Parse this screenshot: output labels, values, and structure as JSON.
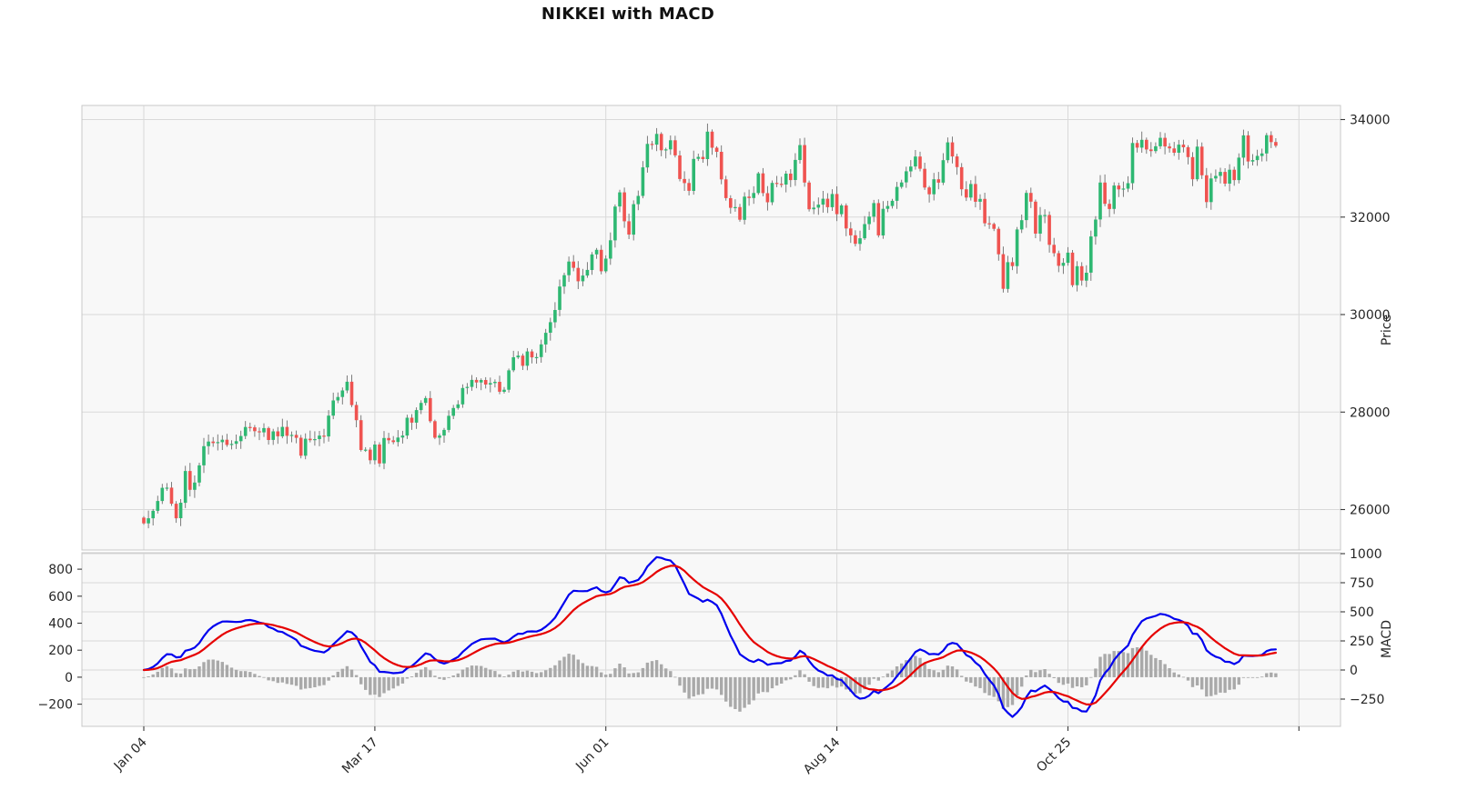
{
  "title": "NIKKEI with MACD",
  "axes": {
    "price": {
      "label": "Price",
      "tick_values": [
        34000,
        32000,
        30000,
        28000,
        26000
      ],
      "tick_labels": [
        "34000",
        "32000",
        "30000",
        "28000",
        "26000"
      ]
    },
    "macd": {
      "label": "MACD",
      "left_tick_values": [
        800,
        600,
        400,
        200,
        0,
        -200
      ],
      "left_tick_labels": [
        "800",
        "600",
        "400",
        "200",
        "0",
        "−200"
      ],
      "right_tick_values": [
        1000,
        750,
        500,
        250,
        0,
        -250
      ],
      "right_tick_labels": [
        "1000",
        "750",
        "500",
        "250",
        "0",
        "−250"
      ]
    },
    "x": {
      "tick_indices": [
        0,
        50,
        100,
        150,
        200,
        250
      ],
      "tick_labels": [
        "Jan 04",
        "Mar 17",
        "Jun 01",
        "Aug 14",
        "Oct 25",
        ""
      ]
    }
  },
  "chart_data": {
    "type": "candlestick_with_macd",
    "title": "NIKKEI with MACD",
    "panels": [
      {
        "name": "price",
        "type": "candle",
        "ylabel": "Price",
        "ylim": [
          25170,
          34290
        ],
        "yticks": [
          26000,
          28000,
          30000,
          32000,
          34000
        ],
        "grid": true
      },
      {
        "name": "macd",
        "type": "macd",
        "ylabel": "MACD",
        "left_ylim": [
          -364,
          922
        ],
        "left_yticks": [
          -200,
          0,
          200,
          400,
          600,
          800
        ],
        "right_ylim": [
          -484,
          1008
        ],
        "right_yticks": [
          -250,
          0,
          250,
          500,
          750,
          1000
        ],
        "grid": true
      }
    ],
    "x_tick_labels": [
      "Jan 04",
      "Mar 17",
      "Jun 01",
      "Aug 14",
      "Oct 25"
    ],
    "x_tick_indices": [
      0,
      50,
      100,
      150,
      200,
      250
    ],
    "macd_params": {
      "fast": 12,
      "slow": 26,
      "signal": 9
    },
    "first_open": 25834,
    "close": [
      25717,
      25821,
      25974,
      26176,
      26446,
      26450,
      26120,
      25822,
      26139,
      26791,
      26405,
      26554,
      26906,
      27299,
      27395,
      27363,
      27383,
      27433,
      27327,
      27347,
      27402,
      27509,
      27694,
      27685,
      27606,
      27584,
      27671,
      27427,
      27603,
      27502,
      27696,
      27513,
      27532,
      27473,
      27104,
      27453,
      27424,
      27446,
      27517,
      27499,
      27927,
      28238,
      28309,
      28444,
      28623,
      28144,
      27833,
      27222,
      27229,
      27011,
      27334,
      26946,
      27467,
      27420,
      27385,
      27477,
      27518,
      27884,
      27783,
      28041,
      28188,
      28287,
      27813,
      27473,
      27518,
      27634,
      27923,
      28083,
      28157,
      28493,
      28515,
      28659,
      28607,
      28658,
      28564,
      28594,
      28620,
      28416,
      28458,
      28856,
      29123,
      29158,
      28950,
      29243,
      29122,
      29127,
      29388,
      29626,
      29843,
      30094,
      30574,
      30808,
      31087,
      30958,
      30683,
      30801,
      30916,
      31234,
      31328,
      30888,
      31148,
      31524,
      32217,
      32507,
      31914,
      31641,
      32265,
      32434,
      33019,
      33502,
      33485,
      33706,
      33370,
      33389,
      33575,
      33265,
      32782,
      32699,
      32538,
      33194,
      33234,
      33189,
      33753,
      33423,
      33339,
      32773,
      32388,
      32190,
      32204,
      31944,
      32419,
      32391,
      32494,
      32896,
      32491,
      32304,
      32701,
      32683,
      32668,
      32891,
      32759,
      33172,
      33477,
      32708,
      32159,
      32193,
      32255,
      32377,
      32204,
      32474,
      32060,
      32239,
      31767,
      31626,
      31451,
      31566,
      31857,
      32010,
      32287,
      31624,
      32170,
      32227,
      32333,
      32619,
      32711,
      32939,
      33037,
      33241,
      32991,
      32607,
      32468,
      32776,
      32707,
      33168,
      33533,
      33243,
      33024,
      32571,
      32402,
      32679,
      32315,
      32372,
      31873,
      31858,
      31760,
      31238,
      30527,
      31075,
      30995,
      31747,
      31937,
      32495,
      32316,
      31659,
      32040,
      32042,
      31431,
      31259,
      31000,
      31062,
      31270,
      30602,
      30992,
      30697,
      30859,
      31602,
      31950,
      32708,
      32272,
      32166,
      32646,
      32568,
      32585,
      32696,
      33520,
      33424,
      33585,
      33388,
      33354,
      33452,
      33626,
      33448,
      33408,
      33321,
      33487,
      33432,
      33231,
      32776,
      33446,
      32858,
      32308,
      32792,
      32844,
      32926,
      32686,
      32971,
      32759,
      33219,
      33676,
      33140,
      33169,
      33254,
      33306,
      33681,
      33540,
      33464
    ],
    "colors": {
      "up": "#2eb872",
      "down": "#ef5350",
      "wick": "#6e6e6e",
      "macd_line": "#0000ee",
      "signal_line": "#e60000",
      "histogram": "#a9a9a9",
      "grid": "#d9d9d9",
      "panel_border": "#c8c8c8",
      "panel_bg": "#f8f8f8",
      "figure_bg": "#ffffff",
      "tick_text": "#262626"
    }
  }
}
